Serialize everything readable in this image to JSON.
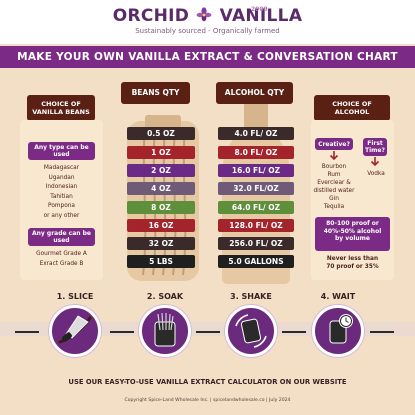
{
  "header": {
    "logo_left": "ORCHID",
    "logo_right": "VANILLA",
    "logo_year": "2009",
    "tagline": "Sustainably sourced - Organically farmed"
  },
  "banner": {
    "title": "MAKE YOUR OWN VANILLA EXTRACT & CONVERSATION CHART"
  },
  "beans": {
    "title": "CHOICE OF VANILLA BEANS",
    "type_pill": "Any type can be used",
    "types": [
      "Madagascar",
      "Ugandan",
      "Indonesian",
      "Tahitian",
      "Pompona",
      "or any other"
    ],
    "grade_pill": "Any grade can be used",
    "grades": [
      "Gourmet Grade A",
      "Exract Grade B"
    ]
  },
  "beans_qty": {
    "title": "BEANS QTY",
    "values": [
      "0.5 OZ",
      "1 OZ",
      "2 OZ",
      "4 OZ",
      "8 OZ",
      "16 OZ",
      "32 OZ",
      "5 LBS"
    ]
  },
  "alcohol_qty": {
    "title": "ALCOHOL QTY",
    "values": [
      "4.0 FL/ OZ",
      "8.0 FL/ OZ",
      "16.0 FL/ OZ",
      "32.0 FL/OZ",
      "64.0 FL/ OZ",
      "128.0 FL/ OZ",
      "256.0 FL/ OZ",
      "5.0 GALLONS"
    ]
  },
  "alcohol": {
    "title": "CHOICE OF ALCOHOL",
    "creative_pill": "Creative?",
    "first_pill": "First Time?",
    "creative_list": [
      "Bourbon",
      "Rum",
      "Everclear &",
      "distilled water",
      "Gin",
      "Tequila"
    ],
    "first_list": [
      "Vodka"
    ],
    "proof_pill": "80-100 proof or 40%-50% alcohol by volume",
    "proof_note_1": "Never less than",
    "proof_note_2": "70 proof or 35%"
  },
  "steps": [
    {
      "label": "1. SLICE",
      "icon": "knife-slicing-bean-icon"
    },
    {
      "label": "2. SOAK",
      "icon": "beans-in-jar-icon"
    },
    {
      "label": "3. SHAKE",
      "icon": "shake-jar-icon"
    },
    {
      "label": "4. WAIT",
      "icon": "timer-jar-icon"
    }
  ],
  "footer": {
    "calculator": "USE OUR EASY-TO-USE VANILLA EXTRACT CALCULATOR ON OUR WEBSITE",
    "copyright": "Copyright Spice-Land Wholesale Inc. | spicelandwholesale.co | July 2024"
  },
  "colors": {
    "purple": "#7b2b86",
    "brown": "#5a2014",
    "row_colors": [
      "#3a2a2a",
      "#a3252b",
      "#6b2a86",
      "#6f5a78",
      "#5e8f3a",
      "#a3252b",
      "#3a2a2a",
      "#1f1f1f"
    ]
  }
}
